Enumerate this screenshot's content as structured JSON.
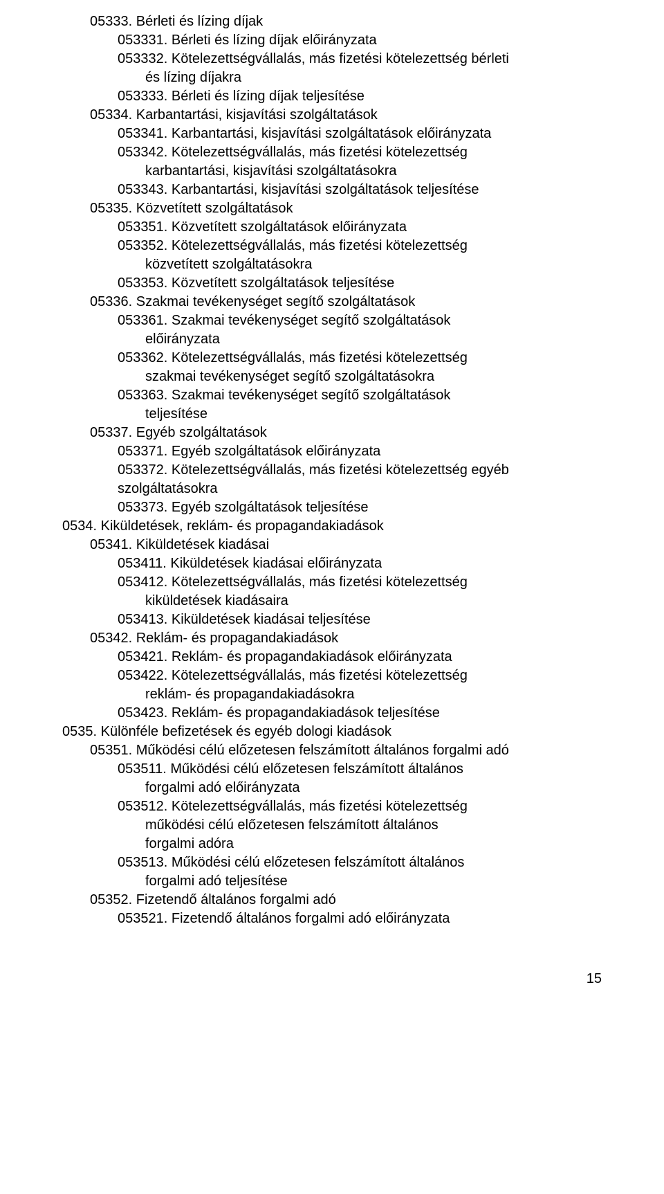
{
  "lines": [
    {
      "cls": "ind1",
      "text": "05333. Bérleti és lízing díjak"
    },
    {
      "cls": "ind2",
      "text": "053331. Bérleti és lízing díjak előirányzata"
    },
    {
      "cls": "ind2",
      "text": "053332. Kötelezettségvállalás, más fizetési kötelezettség bérleti"
    },
    {
      "cls": "ind3",
      "text": "és lízing díjakra"
    },
    {
      "cls": "ind2",
      "text": "053333. Bérleti és lízing díjak teljesítése"
    },
    {
      "cls": "ind1",
      "text": "05334. Karbantartási, kisjavítási szolgáltatások"
    },
    {
      "cls": "ind2",
      "text": "053341. Karbantartási, kisjavítási szolgáltatások előirányzata"
    },
    {
      "cls": "ind2",
      "text": "053342. Kötelezettségvállalás, más fizetési kötelezettség"
    },
    {
      "cls": "ind3",
      "text": "karbantartási, kisjavítási szolgáltatásokra"
    },
    {
      "cls": "ind2",
      "text": "053343. Karbantartási, kisjavítási szolgáltatások teljesítése"
    },
    {
      "cls": "ind1",
      "text": "05335. Közvetített szolgáltatások"
    },
    {
      "cls": "ind2",
      "text": "053351. Közvetített szolgáltatások előirányzata"
    },
    {
      "cls": "ind2",
      "text": "053352. Kötelezettségvállalás, más fizetési kötelezettség"
    },
    {
      "cls": "ind3",
      "text": "közvetített szolgáltatásokra"
    },
    {
      "cls": "ind2",
      "text": "053353. Közvetített szolgáltatások teljesítése"
    },
    {
      "cls": "ind1",
      "text": "05336. Szakmai tevékenységet segítő szolgáltatások"
    },
    {
      "cls": "ind2",
      "text": "053361. Szakmai tevékenységet segítő szolgáltatások"
    },
    {
      "cls": "ind3",
      "text": "előirányzata"
    },
    {
      "cls": "ind2",
      "text": "053362. Kötelezettségvállalás, más fizetési kötelezettség"
    },
    {
      "cls": "ind3",
      "text": "szakmai tevékenységet segítő szolgáltatásokra"
    },
    {
      "cls": "ind2",
      "text": "053363. Szakmai tevékenységet segítő szolgáltatások"
    },
    {
      "cls": "ind3",
      "text": "teljesítése"
    },
    {
      "cls": "ind1",
      "text": "05337. Egyéb szolgáltatások"
    },
    {
      "cls": "ind2",
      "text": "053371. Egyéb szolgáltatások előirányzata"
    },
    {
      "cls": "ind2",
      "text": "053372. Kötelezettségvállalás, más fizetési kötelezettség egyéb"
    },
    {
      "cls": "ind2",
      "text": "szolgáltatásokra"
    },
    {
      "cls": "ind2",
      "text": "053373. Egyéb szolgáltatások teljesítése"
    },
    {
      "cls": "ind0",
      "text": "0534. Kiküldetések, reklám- és propagandakiadások"
    },
    {
      "cls": "ind1",
      "text": "05341. Kiküldetések kiadásai"
    },
    {
      "cls": "ind2",
      "text": "053411. Kiküldetések kiadásai előirányzata"
    },
    {
      "cls": "ind2",
      "text": "053412. Kötelezettségvállalás, más fizetési kötelezettség"
    },
    {
      "cls": "ind3",
      "text": "kiküldetések kiadásaira"
    },
    {
      "cls": "ind2",
      "text": "053413. Kiküldetések kiadásai teljesítése"
    },
    {
      "cls": "ind1",
      "text": "05342. Reklám- és propagandakiadások"
    },
    {
      "cls": "ind2",
      "text": "053421. Reklám- és propagandakiadások előirányzata"
    },
    {
      "cls": "ind2",
      "text": "053422. Kötelezettségvállalás, más fizetési kötelezettség"
    },
    {
      "cls": "ind3",
      "text": "reklám- és propagandakiadásokra"
    },
    {
      "cls": "ind2",
      "text": "053423. Reklám- és propagandakiadások teljesítése"
    },
    {
      "cls": "ind0",
      "text": "0535. Különféle befizetések és egyéb dologi kiadások"
    },
    {
      "cls": "ind1",
      "text": "05351. Működési célú előzetesen felszámított általános forgalmi adó"
    },
    {
      "cls": "ind2",
      "text": "053511. Működési célú előzetesen felszámított általános"
    },
    {
      "cls": "ind3",
      "text": "forgalmi adó előirányzata"
    },
    {
      "cls": "ind2",
      "text": "053512. Kötelezettségvállalás, más fizetési kötelezettség"
    },
    {
      "cls": "ind3",
      "text": "működési célú előzetesen felszámított általános"
    },
    {
      "cls": "ind3",
      "text": "forgalmi adóra"
    },
    {
      "cls": "ind2",
      "text": "053513. Működési célú előzetesen felszámított általános"
    },
    {
      "cls": "ind3",
      "text": "forgalmi adó teljesítése"
    },
    {
      "cls": "ind1",
      "text": "05352. Fizetendő általános forgalmi adó"
    },
    {
      "cls": "ind2",
      "text": "053521. Fizetendő általános forgalmi adó előirányzata"
    }
  ],
  "pageNumber": "15"
}
